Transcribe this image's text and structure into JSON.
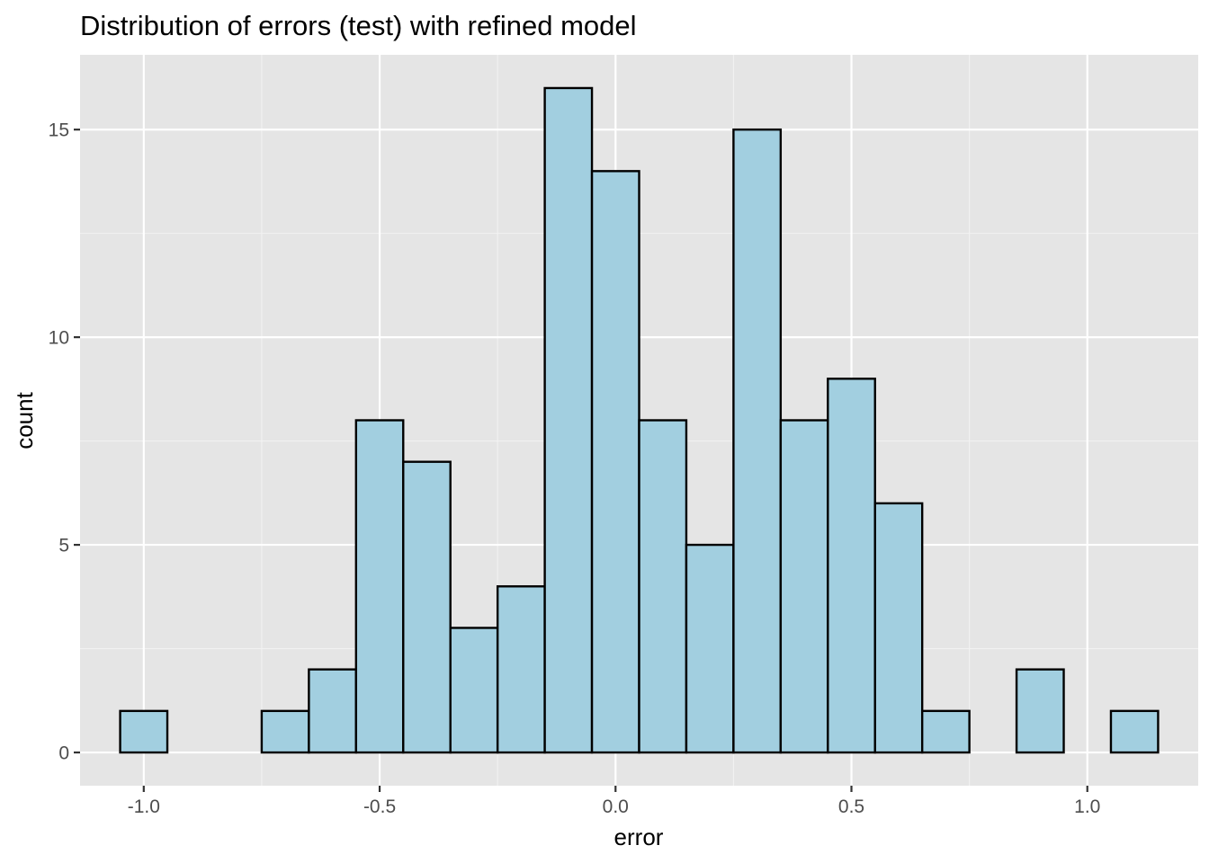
{
  "chart_data": {
    "type": "bar",
    "title": "Distribution of errors (test) with refined model",
    "xlabel": "error",
    "ylabel": "count",
    "bin_width": 0.1,
    "bins": [
      {
        "center": -1.0,
        "count": 1
      },
      {
        "center": -0.9,
        "count": 0
      },
      {
        "center": -0.8,
        "count": 0
      },
      {
        "center": -0.7,
        "count": 1
      },
      {
        "center": -0.6,
        "count": 2
      },
      {
        "center": -0.5,
        "count": 8
      },
      {
        "center": -0.4,
        "count": 7
      },
      {
        "center": -0.3,
        "count": 3
      },
      {
        "center": -0.2,
        "count": 4
      },
      {
        "center": -0.1,
        "count": 16
      },
      {
        "center": 0.0,
        "count": 14
      },
      {
        "center": 0.1,
        "count": 8
      },
      {
        "center": 0.2,
        "count": 5
      },
      {
        "center": 0.3,
        "count": 15
      },
      {
        "center": 0.4,
        "count": 8
      },
      {
        "center": 0.5,
        "count": 9
      },
      {
        "center": 0.6,
        "count": 6
      },
      {
        "center": 0.7,
        "count": 1
      },
      {
        "center": 0.8,
        "count": 0
      },
      {
        "center": 0.9,
        "count": 2
      },
      {
        "center": 1.0,
        "count": 0
      },
      {
        "center": 1.1,
        "count": 1
      }
    ],
    "xlim": [
      -1.135,
      1.235
    ],
    "ylim": [
      -0.8,
      16.8
    ],
    "x_ticks": [
      -1.0,
      -0.5,
      0.0,
      0.5,
      1.0
    ],
    "x_tick_labels": [
      "-1.0",
      "-0.5",
      "0.0",
      "0.5",
      "1.0"
    ],
    "y_ticks": [
      0,
      5,
      10,
      15
    ],
    "y_tick_labels": [
      "0",
      "5",
      "10",
      "15"
    ],
    "grid": true,
    "colors": {
      "bar_fill": "#a2cfe0",
      "bar_stroke": "#000000",
      "panel_background": "#e5e5e5",
      "grid_major": "#ffffff",
      "grid_minor": "#f2f2f2"
    }
  }
}
